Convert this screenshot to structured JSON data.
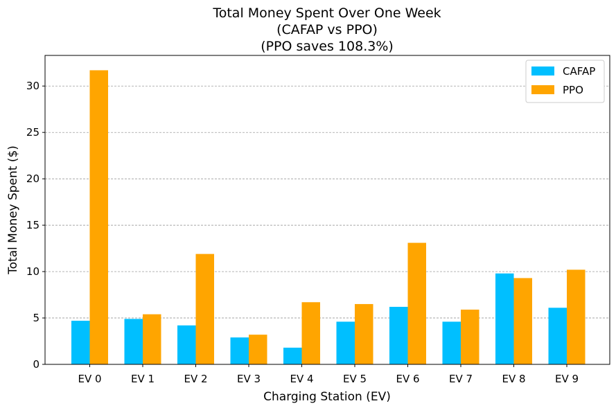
{
  "chart_data": {
    "type": "bar",
    "title": [
      "Total Money Spent Over One Week",
      "(CAFAP vs PPO)",
      "(PPO saves 108.3%)"
    ],
    "xlabel": "Charging Station (EV)",
    "ylabel": "Total Money Spent ($)",
    "categories": [
      "EV 0",
      "EV 1",
      "EV 2",
      "EV 3",
      "EV 4",
      "EV 5",
      "EV 6",
      "EV 7",
      "EV 8",
      "EV 9"
    ],
    "series": [
      {
        "name": "CAFAP",
        "color": "#00bfff",
        "values": [
          4.7,
          4.9,
          4.2,
          2.9,
          1.8,
          4.6,
          6.2,
          4.6,
          9.8,
          6.1
        ]
      },
      {
        "name": "PPO",
        "color": "#ffa500",
        "values": [
          31.7,
          5.4,
          11.9,
          3.2,
          6.7,
          6.5,
          13.1,
          5.9,
          9.3,
          10.2
        ]
      }
    ],
    "ylim": [
      0,
      33.3
    ],
    "yticks": [
      0,
      5,
      10,
      15,
      20,
      25,
      30
    ],
    "grid": "y-dashed",
    "legend_position": "top-right"
  }
}
